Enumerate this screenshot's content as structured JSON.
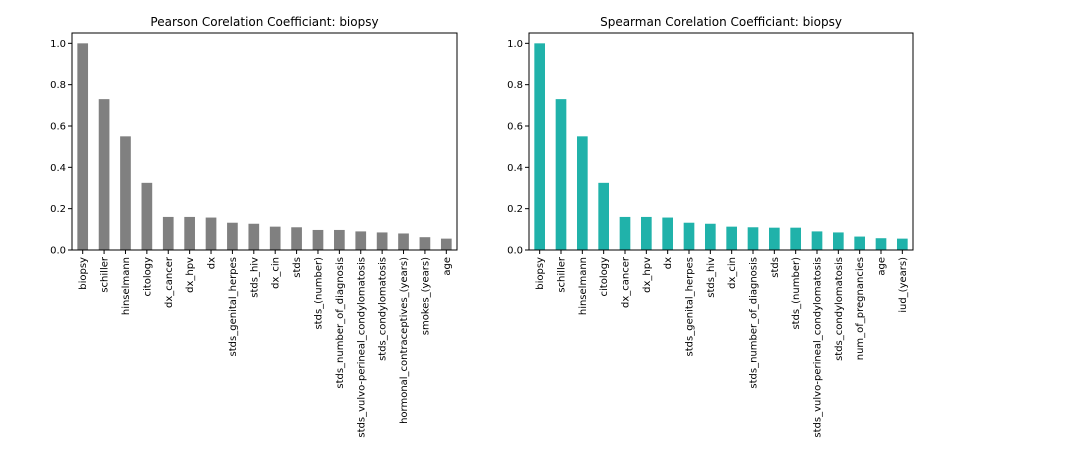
{
  "chart_data": [
    {
      "type": "bar",
      "title": "Pearson Corelation Coefficiant: biopsy",
      "xlabel": "",
      "ylabel": "",
      "ylim": [
        0,
        1.05
      ],
      "yticks": [
        0.0,
        0.2,
        0.4,
        0.6,
        0.8,
        1.0
      ],
      "ytick_labels": [
        "0.0",
        "0.2",
        "0.4",
        "0.6",
        "0.8",
        "1.0"
      ],
      "grid": false,
      "bar_color": "#808080",
      "categories": [
        "biopsy",
        "schiller",
        "hinselmann",
        "citology",
        "dx_cancer",
        "dx_hpv",
        "dx",
        "stds_genital_herpes",
        "stds_hiv",
        "dx_cin",
        "stds",
        "stds_(number)",
        "stds_number_of_diagnosis",
        "stds_vulvo-perineal_condylomatosis",
        "stds_condylomatosis",
        "hormonal_contraceptives_(years)",
        "smokes_(years)",
        "age"
      ],
      "values": [
        1.0,
        0.73,
        0.55,
        0.325,
        0.16,
        0.16,
        0.157,
        0.132,
        0.127,
        0.113,
        0.11,
        0.097,
        0.097,
        0.09,
        0.085,
        0.08,
        0.062,
        0.055
      ]
    },
    {
      "type": "bar",
      "title": "Spearman Corelation Coefficiant: biopsy",
      "xlabel": "",
      "ylabel": "",
      "ylim": [
        0,
        1.05
      ],
      "yticks": [
        0.0,
        0.2,
        0.4,
        0.6,
        0.8,
        1.0
      ],
      "ytick_labels": [
        "0.0",
        "0.2",
        "0.4",
        "0.6",
        "0.8",
        "1.0"
      ],
      "grid": false,
      "bar_color": "#20b2aa",
      "categories": [
        "biopsy",
        "schiller",
        "hinselmann",
        "citology",
        "dx_cancer",
        "dx_hpv",
        "dx",
        "stds_genital_herpes",
        "stds_hiv",
        "dx_cin",
        "stds_number_of_diagnosis",
        "stds",
        "stds_(number)",
        "stds_vulvo-perineal_condylomatosis",
        "stds_condylomatosis",
        "num_of_pregnancies",
        "age",
        "iud_(years)"
      ],
      "values": [
        1.0,
        0.73,
        0.55,
        0.325,
        0.16,
        0.16,
        0.157,
        0.132,
        0.127,
        0.113,
        0.11,
        0.108,
        0.108,
        0.09,
        0.085,
        0.065,
        0.057,
        0.055
      ]
    }
  ]
}
